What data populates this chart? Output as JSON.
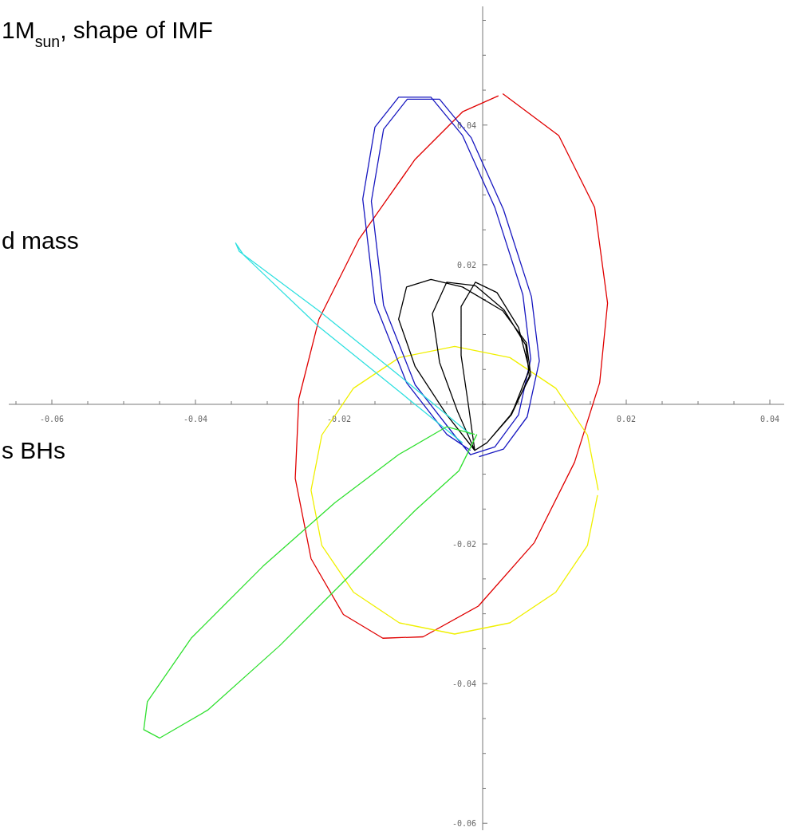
{
  "chart_data": {
    "type": "line",
    "annotations": [
      "1M$_{sun}$, shape of IMF",
      "d mass",
      "s BHs"
    ],
    "xlim": [
      -0.066,
      0.042
    ],
    "ylim": [
      -0.061,
      0.057
    ],
    "grid": false,
    "marker": "none",
    "line_style": "solid",
    "xticks": [
      {
        "value": -0.065,
        "label": null
      },
      {
        "value": -0.06,
        "label": "-0.06"
      },
      {
        "value": -0.055,
        "label": null
      },
      {
        "value": -0.05,
        "label": null
      },
      {
        "value": -0.045,
        "label": null
      },
      {
        "value": -0.04,
        "label": "-0.04"
      },
      {
        "value": -0.035,
        "label": null
      },
      {
        "value": -0.03,
        "label": null
      },
      {
        "value": -0.025,
        "label": null
      },
      {
        "value": -0.02,
        "label": "-0.02"
      },
      {
        "value": -0.015,
        "label": null
      },
      {
        "value": -0.01,
        "label": null
      },
      {
        "value": -0.005,
        "label": null
      },
      {
        "value": 0,
        "label": null
      },
      {
        "value": 0.005,
        "label": null
      },
      {
        "value": 0.01,
        "label": null
      },
      {
        "value": 0.015,
        "label": null
      },
      {
        "value": 0.02,
        "label": "0.02"
      },
      {
        "value": 0.025,
        "label": null
      },
      {
        "value": 0.03,
        "label": null
      },
      {
        "value": 0.035,
        "label": null
      },
      {
        "value": 0.04,
        "label": "0.04"
      }
    ],
    "yticks": [
      {
        "value": -0.06,
        "label": "-0.06"
      },
      {
        "value": -0.055,
        "label": null
      },
      {
        "value": -0.05,
        "label": null
      },
      {
        "value": -0.045,
        "label": null
      },
      {
        "value": -0.04,
        "label": "-0.04"
      },
      {
        "value": -0.035,
        "label": null
      },
      {
        "value": -0.03,
        "label": null
      },
      {
        "value": -0.025,
        "label": null
      },
      {
        "value": -0.02,
        "label": "-0.02"
      },
      {
        "value": -0.015,
        "label": null
      },
      {
        "value": -0.01,
        "label": null
      },
      {
        "value": -0.005,
        "label": null
      },
      {
        "value": 0,
        "label": null
      },
      {
        "value": 0.005,
        "label": null
      },
      {
        "value": 0.01,
        "label": null
      },
      {
        "value": 0.015,
        "label": null
      },
      {
        "value": 0.02,
        "label": "0.02"
      },
      {
        "value": 0.025,
        "label": null
      },
      {
        "value": 0.03,
        "label": null
      },
      {
        "value": 0.035,
        "label": null
      },
      {
        "value": 0.04,
        "label": "0.04"
      },
      {
        "value": 0.045,
        "label": null
      },
      {
        "value": 0.05,
        "label": null
      },
      {
        "value": 0.055,
        "label": null
      }
    ],
    "series": [
      {
        "color": "#e00000",
        "x": [
          0.0028,
          0.0106,
          0.0156,
          0.0174,
          0.0163,
          0.0128,
          0.0072,
          -0.0006,
          -0.0083,
          -0.0139,
          -0.0194,
          -0.0239,
          -0.0261,
          -0.0256,
          -0.0228,
          -0.0172,
          -0.0094,
          -0.0028,
          0.0022
        ],
        "values": [
          0.0445,
          0.0385,
          0.0282,
          0.0145,
          0.0031,
          -0.0083,
          -0.0198,
          -0.0289,
          -0.0333,
          -0.0335,
          -0.0301,
          -0.0221,
          -0.0106,
          0.0008,
          0.0122,
          0.0237,
          0.0351,
          0.0419,
          0.0442
        ]
      },
      {
        "color": "#f0f000",
        "x": [
          0.0161,
          0.0146,
          0.0102,
          0.0038,
          -0.0039,
          -0.0116,
          -0.018,
          -0.0224,
          -0.0239,
          -0.0224,
          -0.018,
          -0.0116,
          -0.0039,
          0.0038,
          0.0102,
          0.0146,
          0.016
        ],
        "values": [
          -0.0123,
          -0.0044,
          0.0023,
          0.0067,
          0.0083,
          0.0067,
          0.0023,
          -0.0044,
          -0.0123,
          -0.0202,
          -0.0269,
          -0.0313,
          -0.0329,
          -0.0313,
          -0.0269,
          -0.0202,
          -0.013
        ]
      },
      {
        "color": "#1818c0",
        "x": [
          -0.0017,
          -0.005,
          -0.0106,
          -0.015,
          -0.0167,
          -0.015,
          -0.0117,
          -0.0072,
          -0.0028,
          0.0017,
          0.0056,
          0.0067,
          0.005,
          0.0017,
          -0.0017,
          -0.0038,
          -0.0094,
          -0.0138,
          -0.0155,
          -0.0138,
          -0.0105,
          -0.006,
          -0.0016,
          0.0029,
          0.0068,
          0.0079,
          0.0062,
          0.0029,
          -0.0005
        ],
        "values": [
          -0.0066,
          -0.0043,
          0.0031,
          0.0145,
          0.0294,
          0.0397,
          0.044,
          0.044,
          0.0385,
          0.0282,
          0.0157,
          0.0065,
          -0.0015,
          -0.0061,
          -0.0072,
          -0.0046,
          0.0028,
          0.0142,
          0.0291,
          0.0394,
          0.0437,
          0.0437,
          0.0382,
          0.0279,
          0.0154,
          0.0062,
          -0.0018,
          -0.0064,
          -0.0075
        ]
      },
      {
        "color": "#000000",
        "x": [
          -0.0011,
          -0.005,
          -0.0094,
          -0.0117,
          -0.0106,
          -0.0072,
          -0.0028,
          0.0028,
          0.0061,
          0.0067,
          0.0039,
          0.0006,
          -0.0011,
          -0.0035,
          -0.006,
          -0.007,
          -0.005,
          -0.001,
          0.003,
          0.006,
          0.0065,
          0.004,
          0.0006,
          -0.0011,
          -0.002,
          -0.003,
          -0.003,
          -0.001,
          0.002,
          0.005,
          0.0065,
          0.004,
          0.0006
        ],
        "values": [
          -0.0066,
          -0.0015,
          0.0054,
          0.0122,
          0.0168,
          0.0179,
          0.0168,
          0.0134,
          0.0088,
          0.0042,
          -0.0015,
          -0.0055,
          -0.0066,
          -0.001,
          0.006,
          0.013,
          0.0175,
          0.017,
          0.0135,
          0.0085,
          0.004,
          -0.0015,
          -0.0055,
          -0.0066,
          0.0,
          0.007,
          0.014,
          0.0175,
          0.016,
          0.011,
          0.005,
          -0.0015,
          -0.0055
        ]
      },
      {
        "color": "#30e0e0",
        "x": [
          -0.0017,
          -0.0117,
          -0.0228,
          -0.0339,
          -0.0344,
          -0.0333,
          -0.0228,
          -0.0117,
          -0.0028
        ],
        "values": [
          -0.0043,
          0.0042,
          0.0134,
          0.0219,
          0.0231,
          0.0214,
          0.0111,
          0.0019,
          -0.0055
        ]
      },
      {
        "color": "#30e030",
        "x": [
          -0.0011,
          -0.005,
          -0.0117,
          -0.0206,
          -0.0306,
          -0.0406,
          -0.0467,
          -0.0472,
          -0.045,
          -0.0383,
          -0.0283,
          -0.0183,
          -0.0094,
          -0.0033,
          -0.0008
        ],
        "values": [
          -0.0043,
          -0.0032,
          -0.0072,
          -0.0141,
          -0.0232,
          -0.0335,
          -0.0426,
          -0.0466,
          -0.0478,
          -0.0438,
          -0.0346,
          -0.0243,
          -0.0152,
          -0.0095,
          -0.0043
        ]
      }
    ]
  }
}
